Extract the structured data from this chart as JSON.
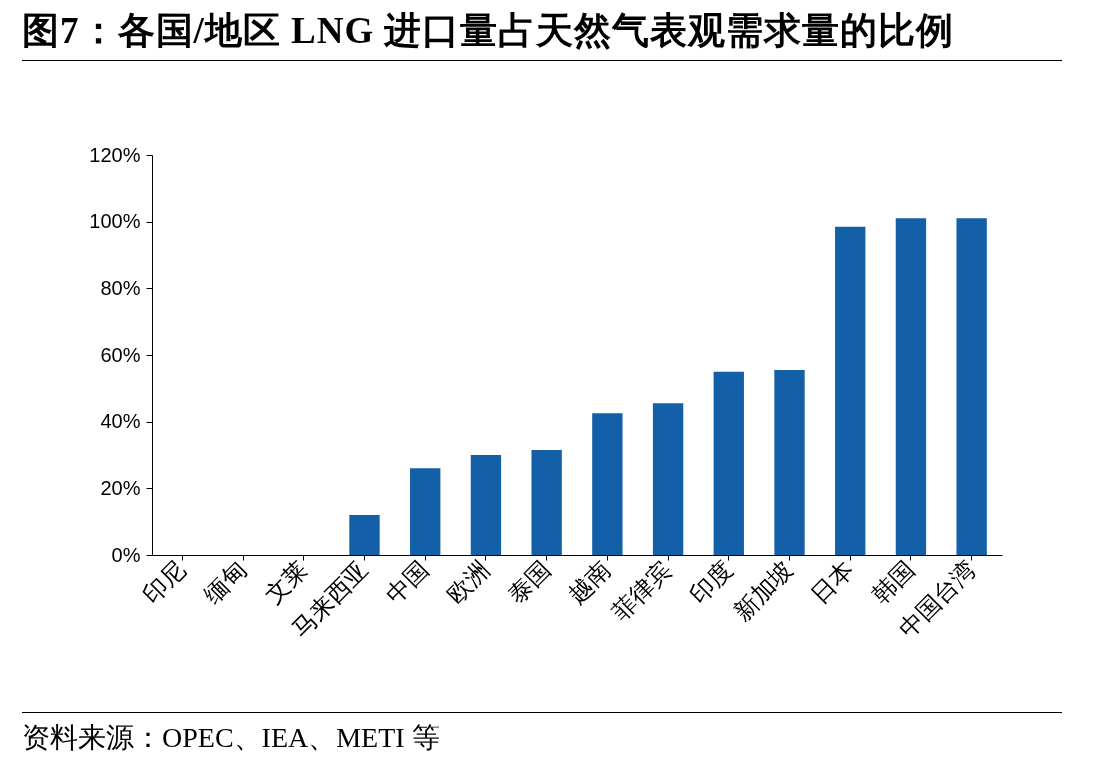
{
  "chart_data": {
    "type": "bar",
    "title": "图7：各国/地区 LNG 进口量占天然气表观需求量的比例",
    "categories": [
      "印尼",
      "缅甸",
      "文莱",
      "马来西亚",
      "中国",
      "欧洲",
      "泰国",
      "越南",
      "菲律宾",
      "印度",
      "新加坡",
      "日本",
      "韩国",
      "中国台湾"
    ],
    "values": [
      0,
      0,
      0,
      12,
      26,
      30,
      31.5,
      42.5,
      45.5,
      55,
      55.5,
      98.5,
      101,
      101
    ],
    "color": "#1460a8",
    "ylim": [
      0,
      120
    ],
    "yticks": [
      {
        "value": 0,
        "label": "0%"
      },
      {
        "value": 20,
        "label": "20%"
      },
      {
        "value": 40,
        "label": "40%"
      },
      {
        "value": 60,
        "label": "60%"
      },
      {
        "value": 80,
        "label": "80%"
      },
      {
        "value": 100,
        "label": "100%"
      },
      {
        "value": 120,
        "label": "120%"
      }
    ],
    "grid": false,
    "annotations": [
      "资料来源：OPEC、IEA、METI 等"
    ]
  }
}
